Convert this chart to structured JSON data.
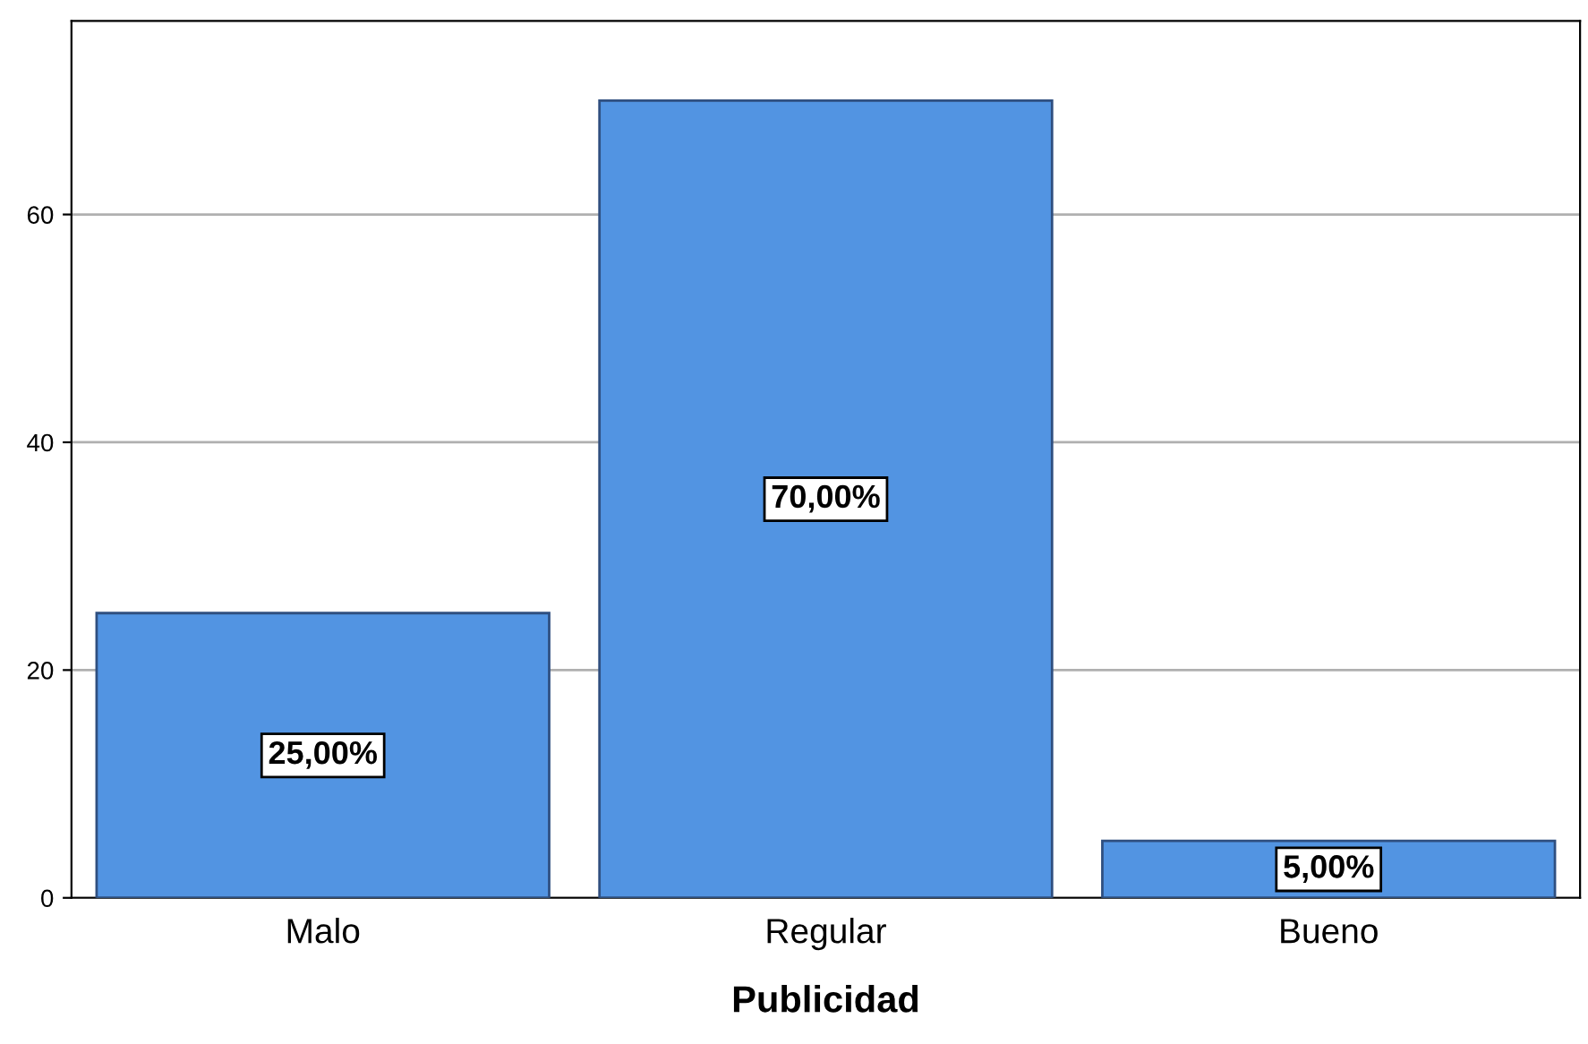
{
  "chart_data": {
    "type": "bar",
    "xlabel": "Publicidad",
    "categories": [
      "Malo",
      "Regular",
      "Bueno"
    ],
    "values": [
      25,
      70,
      5
    ],
    "value_labels": [
      "25,00%",
      "70,00%",
      "5,00%"
    ],
    "color": "#5294e2",
    "ylim": [
      0,
      77
    ],
    "yticks": [
      0,
      20,
      40,
      60
    ],
    "grid": "y"
  }
}
